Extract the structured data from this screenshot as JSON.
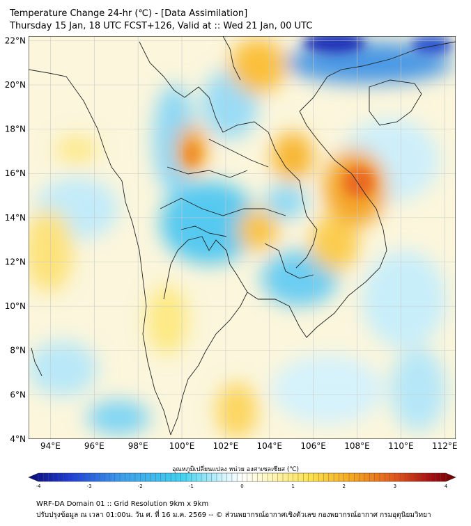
{
  "title_line1": "Temperature Change 24-hr (℃) - [Data Assimilation]",
  "title_line2": "Thursday 15 Jan, 18 UTC FCST+126, Valid at :: Wed 21 Jan, 00 UTC",
  "lat_labels": [
    "22°N",
    "20°N",
    "18°N",
    "16°N",
    "14°N",
    "12°N",
    "10°N",
    "8°N",
    "6°N",
    "4°N"
  ],
  "lat_values": [
    22,
    20,
    18,
    16,
    14,
    12,
    10,
    8,
    6,
    4
  ],
  "lon_labels": [
    "94°E",
    "96°E",
    "98°E",
    "100°E",
    "102°E",
    "104°E",
    "106°E",
    "108°E",
    "110°E",
    "112°E"
  ],
  "lon_values": [
    94,
    96,
    98,
    100,
    102,
    104,
    106,
    108,
    110,
    112
  ],
  "extent": {
    "lon_min": 93,
    "lon_max": 112.5,
    "lat_min": 4,
    "lat_max": 22.2
  },
  "colorbar": {
    "label": "อุณหภูมิเปลี่ยนแปลง หน่วย องศาเซลเซียส (℃)",
    "ticks": [
      "-4",
      "-3",
      "-2",
      "-1",
      "0",
      "1",
      "2",
      "3",
      "4"
    ],
    "tick_values": [
      -4,
      -3,
      -2,
      -1,
      0,
      1,
      2,
      3,
      4
    ],
    "range": [
      -4,
      4
    ],
    "colors": [
      "#0a0a78",
      "#1f3fd8",
      "#3ca0ee",
      "#3fd2f2",
      "#e8faff",
      "#ffffff",
      "#fff8c0",
      "#fde24a",
      "#f6a51e",
      "#e2561a",
      "#a80e10",
      "#6e0000"
    ]
  },
  "footer_line1": "WRF-DA Domain 01 :: Grid Resolution 9km x 9km",
  "footer_line2": "ปรับปรุงข้อมูล ณ เวลา 01:00น. วัน ศ. ที่ 16 ม.ค. 2569 -- © ส่วนพยากรณ์อากาศเชิงตัวเลข กองพยากรณ์อากาศ กรมอุตุนิยมวิทยา"
}
